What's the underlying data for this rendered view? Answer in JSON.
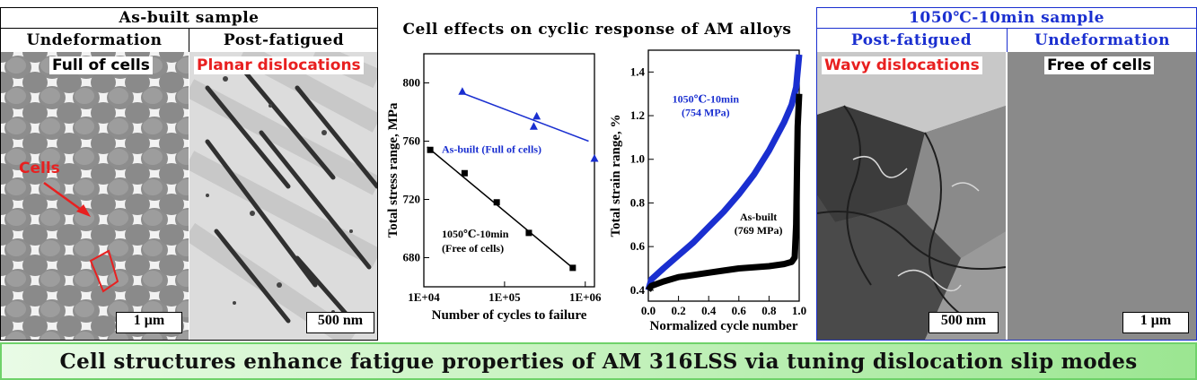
{
  "left_panel": {
    "header": "As-built sample",
    "col1": "Undeformation",
    "col2": "Post-fatigued",
    "img1_label": "Full of cells",
    "img1_annotation": "Cells",
    "img1_scale": "1 μm",
    "img2_label": "Planar dislocations",
    "img2_scale": "500 nm"
  },
  "center_panel": {
    "header": "Cell effects on cyclic response of AM alloys"
  },
  "right_panel": {
    "header": "1050℃-10min sample",
    "col1": "Post-fatigued",
    "col2": "Undeformation",
    "img1_label": "Wavy dislocations",
    "img1_scale": "500 nm",
    "img2_label": "Free of cells",
    "img2_scale": "1 μm"
  },
  "banner": "Cell structures enhance fatigue properties of AM 316LSS via tuning dislocation slip modes",
  "colors": {
    "red": "#e82020",
    "blue": "#1a2fd0",
    "green_border": "#6fd26a"
  },
  "chart_data": [
    {
      "type": "scatter",
      "xlabel": "Number of cycles to failure",
      "ylabel": "Total stress range, MPa",
      "x_scale": "log",
      "xlim": [
        10000,
        1300000
      ],
      "ylim": [
        660,
        820
      ],
      "x_ticks": [
        "1E+04",
        "1E+05",
        "1E+06"
      ],
      "y_ticks": [
        "680",
        "720",
        "760",
        "800"
      ],
      "series": [
        {
          "name": "As-built (Full of cells)",
          "marker": "triangle",
          "color": "#1a2fd0",
          "points": [
            [
              30000,
              794
            ],
            [
              230000,
              770
            ],
            [
              250000,
              777
            ],
            [
              1300000,
              748
            ]
          ],
          "fit": [
            [
              30000,
              793
            ],
            [
              1100000,
              760
            ]
          ]
        },
        {
          "name": "1050℃-10min (Free of cells)",
          "marker": "square",
          "color": "#000000",
          "points": [
            [
              12000,
              754
            ],
            [
              32000,
              738
            ],
            [
              80000,
              718
            ],
            [
              200000,
              697
            ],
            [
              700000,
              673
            ]
          ],
          "fit": [
            [
              11000,
              756
            ],
            [
              700000,
              673
            ]
          ]
        }
      ]
    },
    {
      "type": "line",
      "xlabel": "Normalized cycle number",
      "ylabel": "Total strain range, %",
      "xlim": [
        0,
        1
      ],
      "ylim": [
        0.35,
        1.5
      ],
      "x_ticks": [
        "0.0",
        "0.2",
        "0.4",
        "0.6",
        "0.8",
        "1.0"
      ],
      "y_ticks": [
        "0.4",
        "0.6",
        "0.8",
        "1.0",
        "1.2",
        "1.4"
      ],
      "series": [
        {
          "name": "1050℃-10min",
          "note": "(754 MPa)",
          "color": "#1a2fd0",
          "x": [
            0,
            0.02,
            0.1,
            0.2,
            0.3,
            0.4,
            0.5,
            0.6,
            0.7,
            0.8,
            0.9,
            0.95,
            0.98,
            1.0
          ],
          "y": [
            0.4,
            0.45,
            0.5,
            0.56,
            0.62,
            0.69,
            0.76,
            0.84,
            0.93,
            1.04,
            1.17,
            1.25,
            1.33,
            1.48
          ]
        },
        {
          "name": "As-built",
          "note": "(769 MPa)",
          "color": "#000000",
          "x": [
            0,
            0.02,
            0.1,
            0.2,
            0.3,
            0.4,
            0.5,
            0.6,
            0.7,
            0.8,
            0.9,
            0.95,
            0.97,
            0.98,
            0.99,
            1.0
          ],
          "y": [
            0.4,
            0.42,
            0.44,
            0.46,
            0.47,
            0.48,
            0.49,
            0.5,
            0.505,
            0.51,
            0.52,
            0.53,
            0.55,
            0.7,
            1.15,
            1.3
          ]
        }
      ]
    }
  ]
}
